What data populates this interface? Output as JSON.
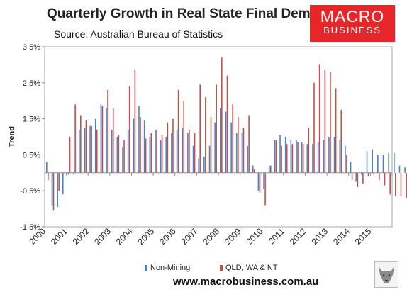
{
  "header": {
    "title": "Quarterly Growth in Real State Final Demand",
    "subtitle": "Source: Australian Bureau of Statistics"
  },
  "logo": {
    "line1": "MACRO",
    "line2": "BUSINESS",
    "color": "#e8262a"
  },
  "footer": {
    "url": "www.macrobusiness.com.au",
    "mascot_icon": "wolf-head-icon"
  },
  "chart_data": {
    "type": "bar",
    "ylabel": "Trend",
    "xlabel": "",
    "ylim": [
      -1.5,
      3.5
    ],
    "yticks": [
      "-1.5%",
      "-0.5%",
      "0.5%",
      "1.5%",
      "2.5%",
      "3.5%"
    ],
    "ytick_values": [
      -1.5,
      -0.5,
      0.5,
      1.5,
      2.5,
      3.5
    ],
    "xticks": [
      "2000",
      "2001",
      "2002",
      "2003",
      "2004",
      "2005",
      "2006",
      "2007",
      "2008",
      "2009",
      "2010",
      "2011",
      "2012",
      "2013",
      "2014",
      "2015"
    ],
    "x_start": "2000 Q1",
    "frequency": "quarterly",
    "grid": false,
    "legend_position": "bottom",
    "series": [
      {
        "name": "Non-Mining",
        "color": "#4f81bd",
        "values": [
          0.3,
          -0.9,
          -0.95,
          -0.6,
          -0.05,
          -0.05,
          1.2,
          1.25,
          1.3,
          1.5,
          1.9,
          1.8,
          1.2,
          1.0,
          0.7,
          1.2,
          1.5,
          1.85,
          1.45,
          1.0,
          1.2,
          0.9,
          1.0,
          1.1,
          1.2,
          1.25,
          1.1,
          0.75,
          0.4,
          0.45,
          0.75,
          1.4,
          1.8,
          1.7,
          1.4,
          1.1,
          1.1,
          0.75,
          0.2,
          -0.5,
          -0.45,
          0.2,
          0.9,
          1.05,
          1.0,
          0.9,
          0.9,
          0.85,
          0.8,
          0.8,
          0.85,
          0.9,
          1.0,
          1.0,
          0.9,
          0.75,
          0.3,
          -0.25,
          -0.05,
          0.6,
          0.65,
          0.5,
          0.5,
          0.55,
          0.55,
          0.2,
          0.15,
          0.2
        ]
      },
      {
        "name": "QLD, WA & NT",
        "color": "#c0504d",
        "values": [
          -0.2,
          -1.05,
          -0.5,
          0.0,
          1.0,
          1.9,
          1.6,
          1.45,
          1.3,
          1.2,
          1.85,
          2.3,
          1.8,
          1.05,
          0.9,
          2.4,
          2.85,
          1.55,
          0.95,
          1.1,
          1.2,
          1.05,
          1.4,
          1.5,
          2.3,
          2.0,
          1.2,
          1.1,
          2.45,
          2.1,
          1.55,
          2.45,
          3.2,
          2.7,
          1.9,
          1.55,
          1.25,
          1.6,
          0.1,
          -0.55,
          -0.9,
          0.2,
          0.9,
          0.75,
          0.8,
          0.8,
          0.85,
          0.8,
          1.25,
          2.5,
          3.0,
          2.85,
          2.8,
          2.35,
          1.75,
          0.5,
          -0.2,
          -0.4,
          -0.3,
          -0.1,
          -0.05,
          -0.2,
          -0.35,
          -0.6,
          -0.65,
          -0.65,
          -0.7,
          -0.65
        ]
      }
    ]
  }
}
